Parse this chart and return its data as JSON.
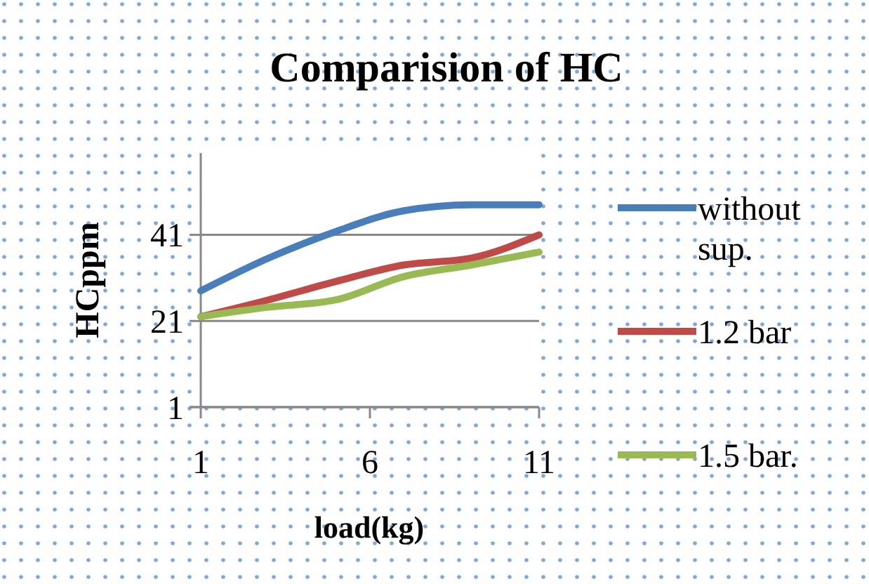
{
  "chart_data": {
    "type": "line",
    "title": "Comparision of HC",
    "xlabel": "load(kg)",
    "ylabel": "HCppm",
    "x": [
      1,
      3,
      5,
      7,
      9,
      11
    ],
    "series": [
      {
        "name": "without sup.",
        "color": "#4a7ebb",
        "values": [
          28,
          35.6,
          41.8,
          46.6,
          48,
          48
        ]
      },
      {
        "name": "1.2 bar",
        "color": "#be4b48",
        "values": [
          22,
          25.9,
          30.2,
          34,
          35.6,
          41
        ]
      },
      {
        "name": "1.5 bar.",
        "color": "#98b954",
        "values": [
          22,
          24.2,
          25.9,
          31.3,
          34,
          37
        ]
      }
    ],
    "xlim": [
      1,
      11
    ],
    "xticks": [
      1,
      6,
      11
    ],
    "ylim": [
      1,
      60
    ],
    "yticks": [
      1,
      21,
      41
    ],
    "grid": "y",
    "legend": "right",
    "marker": "none",
    "line_style": "solid"
  }
}
